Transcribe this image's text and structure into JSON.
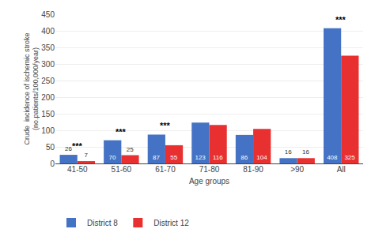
{
  "chart_data": {
    "type": "bar",
    "categories": [
      "41-50",
      "51-60",
      "61-70",
      "71-80",
      "81-90",
      ">90",
      "All"
    ],
    "series": [
      {
        "name": "District 8",
        "color": "#4472c4",
        "values": [
          26,
          70,
          87,
          123,
          86,
          16,
          408
        ]
      },
      {
        "name": "District 12",
        "color": "#e83030",
        "values": [
          7,
          25,
          55,
          116,
          104,
          16,
          325
        ]
      }
    ],
    "ylabel": "Crude  incidence of ischemic stroke\n(no.patients/100,000/year)",
    "xlabel": "Age groups",
    "ylim": [
      0,
      450
    ],
    "yticks": [
      0,
      50,
      100,
      150,
      200,
      250,
      300,
      350,
      400,
      450
    ],
    "grid": true,
    "legend": "lower left",
    "data_labels": true,
    "annotations": [
      {
        "category": "41-50",
        "text": "***"
      },
      {
        "category": "51-60",
        "text": "***"
      },
      {
        "category": "61-70",
        "text": "***"
      },
      {
        "category": "All",
        "text": "***"
      }
    ]
  }
}
